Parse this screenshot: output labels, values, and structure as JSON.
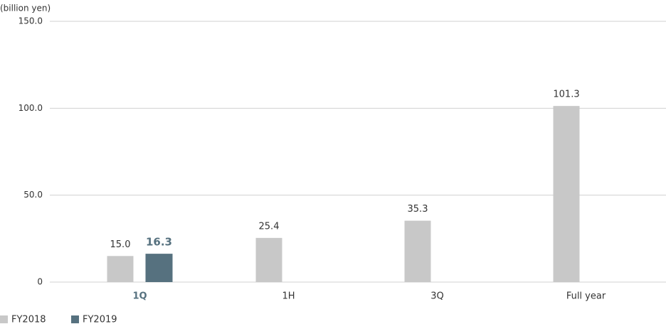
{
  "chart_data": {
    "type": "bar",
    "y_label": "(billion yen)",
    "categories": [
      "1Q",
      "1H",
      "3Q",
      "Full year"
    ],
    "series": [
      {
        "name": "FY2018",
        "color": "#c8c8c8",
        "values": [
          15.0,
          25.4,
          35.3,
          101.3
        ],
        "value_labels": [
          "15.0",
          "25.4",
          "35.3",
          "101.3"
        ]
      },
      {
        "name": "FY2019",
        "color": "#56717f",
        "values": [
          16.3,
          null,
          null,
          null
        ],
        "value_labels": [
          "16.3",
          null,
          null,
          null
        ]
      }
    ],
    "ylim": [
      0,
      150
    ],
    "yticks": [
      0,
      {
        "value": 50,
        "label": "50.0"
      },
      {
        "value": 100,
        "label": "100.0"
      },
      {
        "value": 150,
        "label": "150.0"
      }
    ],
    "grid": true
  }
}
